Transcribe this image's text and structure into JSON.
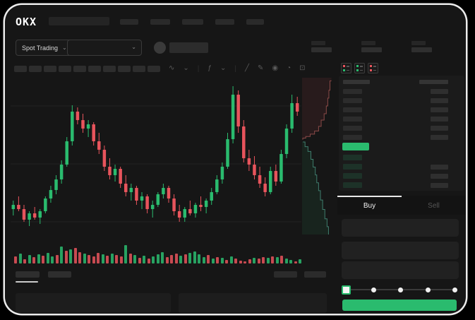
{
  "colors": {
    "green": "#2abb6e",
    "red": "#e8545c",
    "bid_row_green": "#1d3228",
    "grid": "#222222",
    "depth_ask_line": "#8a4a48",
    "depth_ask_fill": "rgba(210,80,85,0.10)",
    "depth_bid_line": "#3f7d6d",
    "depth_bid_fill": "rgba(45,170,110,0.10)",
    "placeholder": "#2a2a2a",
    "placeholder_dim": "#262626",
    "placeholder_value": "#2f2f2f"
  },
  "top_nav": {
    "logo": "OKX",
    "nav_bar_widths": [
      26,
      28,
      30,
      27,
      25
    ]
  },
  "market_bar": {
    "market_type_label": "Spot Trading",
    "chevron": "⌄",
    "stats_placeholder_count": 3
  },
  "chart_toolbar": {
    "interval_bar_count": 10,
    "icons": [
      {
        "name": "candle-style-icon",
        "glyph": "∿"
      },
      {
        "name": "chevron-down-icon",
        "glyph": "⌄"
      },
      {
        "name": "toolbar-divider",
        "glyph": "|"
      },
      {
        "name": "indicator-icon",
        "glyph": "ƒ"
      },
      {
        "name": "chevron-down-icon",
        "glyph": "⌄"
      },
      {
        "name": "toolbar-divider",
        "glyph": "|"
      },
      {
        "name": "trendline-icon",
        "glyph": "╱"
      },
      {
        "name": "draw-icon",
        "glyph": "✎"
      },
      {
        "name": "screenshot-icon",
        "glyph": "◉"
      },
      {
        "name": "history-icon",
        "glyph": "◔"
      },
      {
        "name": "fullscreen-icon",
        "glyph": "⊡"
      }
    ]
  },
  "chart_data": {
    "type": "candlestick",
    "value_range": [
      24,
      94
    ],
    "grid_lines_y": [
      40,
      122,
      204
    ],
    "candles": [
      [
        34,
        38,
        31,
        36
      ],
      [
        36,
        40,
        33,
        34
      ],
      [
        34,
        36,
        28,
        29
      ],
      [
        29,
        33,
        26,
        32
      ],
      [
        32,
        35,
        29,
        30
      ],
      [
        30,
        34,
        27,
        33
      ],
      [
        33,
        40,
        32,
        39
      ],
      [
        39,
        45,
        37,
        43
      ],
      [
        43,
        50,
        41,
        48
      ],
      [
        48,
        57,
        46,
        55
      ],
      [
        55,
        68,
        54,
        66
      ],
      [
        66,
        83,
        64,
        80
      ],
      [
        80,
        82,
        74,
        76
      ],
      [
        76,
        79,
        70,
        72
      ],
      [
        72,
        76,
        68,
        74
      ],
      [
        74,
        75,
        64,
        66
      ],
      [
        66,
        70,
        60,
        62
      ],
      [
        62,
        64,
        52,
        54
      ],
      [
        54,
        58,
        48,
        50
      ],
      [
        50,
        55,
        47,
        53
      ],
      [
        53,
        54,
        44,
        46
      ],
      [
        46,
        50,
        40,
        42
      ],
      [
        42,
        46,
        38,
        44
      ],
      [
        44,
        45,
        36,
        38
      ],
      [
        38,
        42,
        34,
        40
      ],
      [
        40,
        41,
        32,
        34
      ],
      [
        34,
        38,
        30,
        36
      ],
      [
        36,
        42,
        35,
        41
      ],
      [
        41,
        46,
        39,
        44
      ],
      [
        44,
        45,
        37,
        39
      ],
      [
        39,
        41,
        31,
        33
      ],
      [
        33,
        36,
        28,
        30
      ],
      [
        30,
        35,
        28,
        34
      ],
      [
        34,
        38,
        31,
        32
      ],
      [
        32,
        37,
        30,
        36
      ],
      [
        36,
        40,
        33,
        35
      ],
      [
        35,
        39,
        32,
        38
      ],
      [
        38,
        44,
        36,
        42
      ],
      [
        42,
        50,
        41,
        48
      ],
      [
        48,
        56,
        46,
        54
      ],
      [
        54,
        70,
        53,
        67
      ],
      [
        67,
        92,
        65,
        88
      ],
      [
        88,
        90,
        70,
        73
      ],
      [
        73,
        76,
        56,
        58
      ],
      [
        58,
        62,
        52,
        55
      ],
      [
        55,
        59,
        48,
        50
      ],
      [
        50,
        54,
        44,
        46
      ],
      [
        46,
        49,
        40,
        42
      ],
      [
        42,
        54,
        41,
        52
      ],
      [
        52,
        55,
        45,
        47
      ],
      [
        47,
        62,
        46,
        60
      ],
      [
        60,
        74,
        58,
        72
      ],
      [
        72,
        88,
        70,
        84
      ],
      [
        84,
        87,
        78,
        80
      ]
    ],
    "volume": [
      [
        10,
        "r"
      ],
      [
        14,
        "g"
      ],
      [
        6,
        "r"
      ],
      [
        12,
        "g"
      ],
      [
        9,
        "r"
      ],
      [
        13,
        "g"
      ],
      [
        11,
        "r"
      ],
      [
        15,
        "g"
      ],
      [
        10,
        "g"
      ],
      [
        12,
        "r"
      ],
      [
        24,
        "g"
      ],
      [
        18,
        "r"
      ],
      [
        20,
        "g"
      ],
      [
        22,
        "r"
      ],
      [
        16,
        "r"
      ],
      [
        14,
        "g"
      ],
      [
        12,
        "r"
      ],
      [
        10,
        "r"
      ],
      [
        15,
        "r"
      ],
      [
        13,
        "g"
      ],
      [
        11,
        "r"
      ],
      [
        14,
        "g"
      ],
      [
        12,
        "r"
      ],
      [
        10,
        "r"
      ],
      [
        26,
        "g"
      ],
      [
        14,
        "r"
      ],
      [
        12,
        "g"
      ],
      [
        8,
        "r"
      ],
      [
        11,
        "g"
      ],
      [
        7,
        "r"
      ],
      [
        10,
        "g"
      ],
      [
        13,
        "g"
      ],
      [
        16,
        "g"
      ],
      [
        9,
        "r"
      ],
      [
        12,
        "r"
      ],
      [
        14,
        "r"
      ],
      [
        11,
        "g"
      ],
      [
        13,
        "r"
      ],
      [
        15,
        "g"
      ],
      [
        17,
        "g"
      ],
      [
        13,
        "g"
      ],
      [
        9,
        "g"
      ],
      [
        12,
        "r"
      ],
      [
        7,
        "g"
      ],
      [
        9,
        "r"
      ],
      [
        8,
        "g"
      ],
      [
        5,
        "r"
      ],
      [
        10,
        "g"
      ],
      [
        7,
        "r"
      ],
      [
        4,
        "r"
      ],
      [
        3,
        "r"
      ],
      [
        6,
        "r"
      ],
      [
        8,
        "g"
      ],
      [
        7,
        "r"
      ],
      [
        9,
        "r"
      ],
      [
        8,
        "g"
      ],
      [
        10,
        "r"
      ],
      [
        9,
        "g"
      ],
      [
        11,
        "r"
      ],
      [
        7,
        "g"
      ],
      [
        5,
        "g"
      ],
      [
        3,
        "r"
      ],
      [
        6,
        "g"
      ]
    ],
    "depth": {
      "asks": [
        [
          0.8,
          0.02
        ],
        [
          0.76,
          0.08
        ],
        [
          0.73,
          0.13
        ],
        [
          0.7,
          0.18
        ],
        [
          0.66,
          0.23
        ],
        [
          0.6,
          0.27
        ],
        [
          0.52,
          0.31
        ],
        [
          0.45,
          0.34
        ],
        [
          0.34,
          0.36
        ],
        [
          0.22,
          0.375
        ],
        [
          0.1,
          0.385
        ],
        [
          0.02,
          0.395
        ]
      ],
      "bids": [
        [
          0.02,
          0.41
        ],
        [
          0.08,
          0.44
        ],
        [
          0.16,
          0.47
        ],
        [
          0.24,
          0.52
        ],
        [
          0.3,
          0.57
        ],
        [
          0.36,
          0.62
        ],
        [
          0.4,
          0.67
        ],
        [
          0.45,
          0.72
        ],
        [
          0.5,
          0.78
        ],
        [
          0.56,
          0.84
        ],
        [
          0.62,
          0.9
        ],
        [
          0.68,
          0.95
        ],
        [
          0.72,
          1.0
        ]
      ]
    }
  },
  "order_book": {
    "view_toggles": [
      {
        "name": "book-split-view-icon",
        "colors": [
          "red",
          "green"
        ]
      },
      {
        "name": "book-buys-view-icon",
        "colors": [
          "green",
          "green"
        ]
      },
      {
        "name": "book-sells-view-icon",
        "colors": [
          "red",
          "red"
        ]
      }
    ],
    "ask_row_count": 6,
    "bid_rows": [
      {
        "right": false
      },
      {
        "right": true
      },
      {
        "right": true
      },
      {
        "right": true
      }
    ]
  },
  "trade_form": {
    "tabs": [
      {
        "label": "Buy",
        "active": true
      },
      {
        "label": "Sell",
        "active": false
      }
    ],
    "field_count": 3,
    "slider_stops": 5,
    "slider_position_index": 0
  },
  "bottom_bar": {
    "tab_bar_widths": [
      34,
      33
    ],
    "active_tab_index": 0,
    "right_bar_widths": [
      33,
      31
    ],
    "panel_count": 2
  }
}
